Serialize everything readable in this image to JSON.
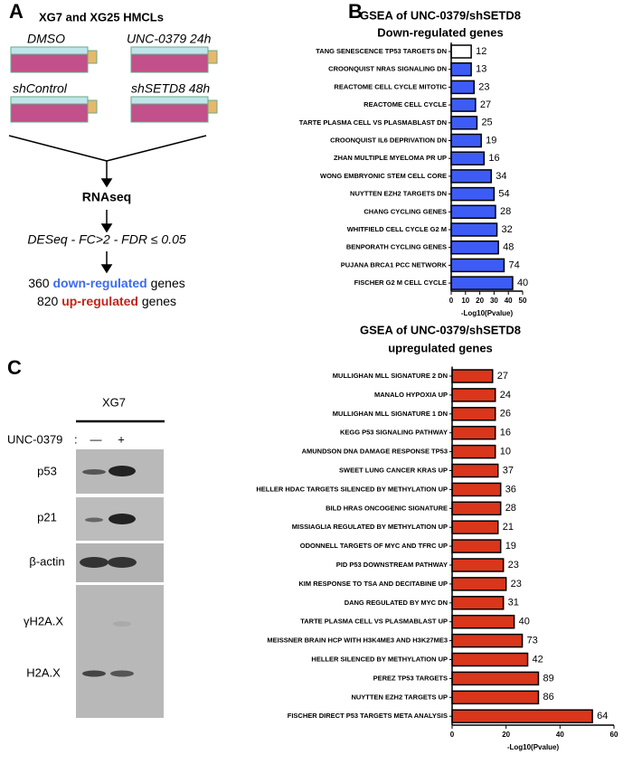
{
  "panel_labels": [
    "A",
    "B",
    "C"
  ],
  "panel_a": {
    "title": "XG7 and XG25 HMCLs",
    "conditions": [
      "DMSO",
      "UNC-0379 24h",
      "shControl",
      "shSETD8 48h"
    ],
    "step1": "RNAseq",
    "step2": "DESeq - FC>2 - FDR ≤ 0.05",
    "result_down": {
      "count": "360",
      "label": "down-regulated",
      "suffix": "genes"
    },
    "result_up": {
      "count": "820",
      "label": "up-regulated",
      "suffix": "genes"
    }
  },
  "panel_c": {
    "cell_line": "XG7",
    "treatment": "UNC-0379",
    "separator": ":",
    "lanes": [
      "—",
      "+"
    ],
    "blots": [
      "p53",
      "p21",
      "β-actin",
      "γH2A.X",
      "H2A.X"
    ]
  },
  "chart_data": [
    {
      "type": "hbar",
      "title": "GSEA of UNC-0379/shSETD8",
      "subtitle": "Down-regulated genes",
      "xlabel": "-Log10(Pvalue)",
      "xlim": [
        0,
        50
      ],
      "xticks": [
        0,
        10,
        20,
        30,
        40,
        50
      ],
      "categories": [
        "TANG SENESCENCE TP53 TARGETS DN",
        "CROONQUIST NRAS SIGNALING DN",
        "REACTOME CELL CYCLE MITOTIC",
        "REACTOME CELL CYCLE",
        "TARTE PLASMA CELL VS PLASMABLAST DN",
        "CROONQUIST IL6 DEPRIVATION DN",
        "ZHAN MULTIPLE MYELOMA PR UP",
        "WONG EMBRYONIC STEM CELL CORE",
        "NUYTTEN EZH2 TARGETS DN",
        "CHANG CYCLING GENES",
        "WHITFIELD CELL CYCLE G2 M",
        "BENPORATH CYCLING GENES",
        "PUJANA BRCA1 PCC NETWORK",
        "FISCHER G2 M CELL CYCLE"
      ],
      "values": [
        14,
        14,
        16,
        17,
        18,
        21,
        23,
        28,
        30,
        31,
        32,
        33,
        37,
        43
      ],
      "gene_counts": [
        12,
        13,
        23,
        27,
        25,
        19,
        16,
        34,
        54,
        28,
        32,
        48,
        74,
        40
      ],
      "colors": [
        "#ffffff",
        "#3d5cf5",
        "#3d5cf5",
        "#3d5cf5",
        "#3d5cf5",
        "#3d5cf5",
        "#3d5cf5",
        "#3d5cf5",
        "#3d5cf5",
        "#3d5cf5",
        "#3d5cf5",
        "#3d5cf5",
        "#3d5cf5",
        "#3d5cf5"
      ]
    },
    {
      "type": "hbar",
      "title": "GSEA of UNC-0379/shSETD8",
      "subtitle": "upregulated genes",
      "xlabel": "-Log10(Pvalue)",
      "xlim": [
        0,
        60
      ],
      "xticks": [
        0,
        20,
        40,
        60
      ],
      "categories": [
        "MULLIGHAN MLL SIGNATURE 2 DN",
        "MANALO HYPOXIA UP",
        "MULLIGHAN MLL SIGNATURE 1 DN",
        "KEGG P53 SIGNALING PATHWAY",
        "AMUNDSON DNA DAMAGE RESPONSE TP53",
        "SWEET LUNG CANCER KRAS UP",
        "HELLER HDAC TARGETS SILENCED BY METHYLATION UP",
        "BILD HRAS ONCOGENIC SIGNATURE",
        "MISSIAGLIA REGULATED BY METHYLATION UP",
        "ODONNELL TARGETS OF MYC AND TFRC UP",
        "PID P53 DOWNSTREAM PATHWAY",
        "KIM RESPONSE TO TSA AND DECITABINE UP",
        "DANG REGULATED BY MYC DN",
        "TARTE PLASMA CELL VS PLASMABLAST UP",
        "MEISSNER BRAIN HCP WITH H3K4ME3 AND H3K27ME3",
        "HELLER SILENCED BY METHYLATION UP",
        "PEREZ TP53 TARGETS",
        "NUYTTEN EZH2 TARGETS UP",
        "FISCHER DIRECT P53 TARGETS META ANALYSIS"
      ],
      "values": [
        15,
        16,
        16,
        16,
        16,
        17,
        18,
        18,
        17,
        18,
        19,
        20,
        19,
        23,
        26,
        28,
        32,
        32,
        52
      ],
      "gene_counts": [
        27,
        24,
        26,
        16,
        10,
        37,
        36,
        28,
        21,
        19,
        23,
        23,
        31,
        40,
        73,
        42,
        89,
        86,
        64
      ],
      "color": "#d9361b"
    }
  ]
}
